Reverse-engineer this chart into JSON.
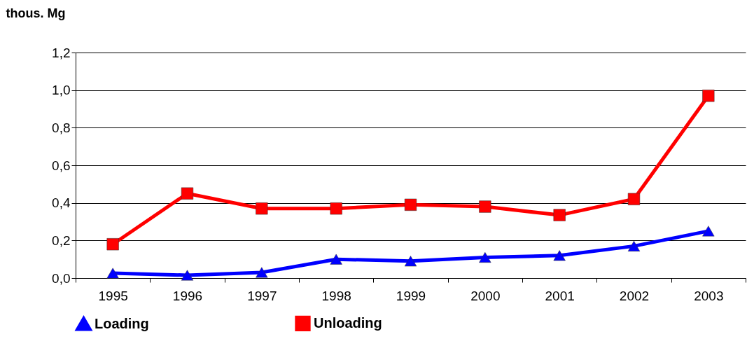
{
  "chart_data": {
    "type": "line",
    "ylabel": "thous. Mg",
    "categories": [
      "1995",
      "1996",
      "1997",
      "1998",
      "1999",
      "2000",
      "2001",
      "2002",
      "2003"
    ],
    "series": [
      {
        "name": "Loading",
        "color": "#0000ff",
        "marker": "triangle",
        "values": [
          0.026,
          0.015,
          0.03,
          0.1,
          0.09,
          0.11,
          0.12,
          0.17,
          0.25
        ]
      },
      {
        "name": "Unloading",
        "color": "#ff0000",
        "marker": "square",
        "values": [
          0.18,
          0.45,
          0.37,
          0.37,
          0.39,
          0.38,
          0.335,
          0.42,
          0.97
        ]
      }
    ],
    "ylim": [
      0,
      1.2
    ],
    "yticks": [
      {
        "value": 0,
        "label": "0,0"
      },
      {
        "value": 0.2,
        "label": "0,2"
      },
      {
        "value": 0.4,
        "label": "0,4"
      },
      {
        "value": 0.6,
        "label": "0,6"
      },
      {
        "value": 0.8,
        "label": "0,8"
      },
      {
        "value": 1.0,
        "label": "1,0"
      },
      {
        "value": 1.2,
        "label": "1,2"
      }
    ],
    "grid": "y",
    "legend": "bottom",
    "line_style": "solid"
  }
}
